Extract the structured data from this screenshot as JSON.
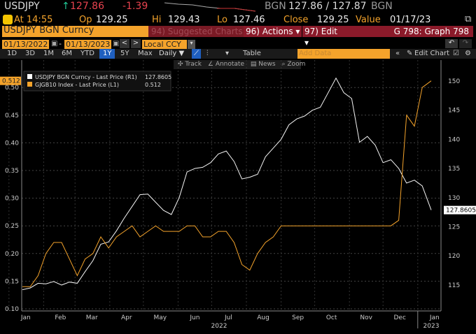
{
  "quote": {
    "ticker": "USDJPY",
    "arrow": "↑",
    "last": "127.86",
    "change": "-1.39",
    "source": "BGN",
    "bidask": "127.86 / 127.87",
    "source2": "BGN"
  },
  "stats": {
    "at": "At 14:55",
    "op_label": "Op",
    "op": "129.25",
    "hi_label": "Hi",
    "hi": "129.43",
    "lo_label": "Lo",
    "lo": "127.46",
    "close_label": "Close",
    "close": "129.25",
    "value_label": "Value",
    "value": "01/17/23"
  },
  "toolbar": {
    "security": "USDJPY BGN Curncy",
    "suggested": "94) Suggested Charts",
    "actions": "96) Actions ▾",
    "edit": "97) Edit ▾",
    "graph": "G 798: Graph 798"
  },
  "dates": {
    "start": "01/13/2022",
    "end": "01/13/2023",
    "currency": "Local CCY"
  },
  "periods": [
    "1D",
    "3D",
    "1M",
    "6M",
    "YTD",
    "1Y",
    "5Y",
    "Max"
  ],
  "active_period": "1Y",
  "frequency": "Daily ▼",
  "table_label": "Table",
  "add_data_placeholder": "Add Data",
  "edit_chart": "Edit Chart",
  "chart_tools": {
    "track": "Track",
    "annotate": "Annotate",
    "news": "News",
    "zoom": "Zoom"
  },
  "chart_data": {
    "type": "line",
    "legend": [
      {
        "name": "USDJPY BGN Curncy - Last Price (R1)",
        "value": "127.8605",
        "color": "#ffffff"
      },
      {
        "name": "GJGB10 Index - Last Price (L1)",
        "value": "0.512",
        "color": "#f4a32b"
      }
    ],
    "left_ticks": [
      "0.10",
      "0.15",
      "0.20",
      "0.25",
      "0.30",
      "0.35",
      "0.40",
      "0.45",
      "0.50"
    ],
    "right_ticks": [
      "115",
      "120",
      "125",
      "130",
      "135",
      "140",
      "145",
      "150"
    ],
    "left_tag": "0.512",
    "right_tag": "127.8605",
    "ylim_left": [
      0.1,
      0.55
    ],
    "ylim_right": [
      110,
      152
    ],
    "x_months": [
      "Jan",
      "Feb",
      "Mar",
      "Apr",
      "May",
      "Jun",
      "Jul",
      "Aug",
      "Sep",
      "Oct",
      "Nov",
      "Dec",
      "Jan"
    ],
    "x_years": [
      "2022",
      "2023"
    ],
    "days": [
      12,
      19,
      26,
      33,
      40,
      47,
      54,
      61,
      68,
      75,
      82,
      89,
      96,
      103,
      110,
      117,
      124,
      131,
      138,
      145,
      152,
      159,
      166,
      173,
      180,
      187,
      194,
      201,
      208,
      215,
      222,
      229,
      236,
      243,
      250,
      257,
      264,
      271,
      278,
      285,
      292,
      299,
      306,
      313,
      320,
      327,
      334,
      341,
      348,
      355,
      362,
      369,
      377
    ],
    "series": [
      {
        "name": "USDJPY",
        "axis": "right",
        "values": [
          114.2,
          114.5,
          115.3,
          115.2,
          115.6,
          115.0,
          115.5,
          115.3,
          117.3,
          119.2,
          122.0,
          122.4,
          124.3,
          126.5,
          128.5,
          130.5,
          130.6,
          129.2,
          127.8,
          127.1,
          130.0,
          134.4,
          135.0,
          135.2,
          136.0,
          137.5,
          138.0,
          136.2,
          133.2,
          133.5,
          134.0,
          137.0,
          138.5,
          140.0,
          142.5,
          143.5,
          144.0,
          145.0,
          145.5,
          148.0,
          150.5,
          148.0,
          147.0,
          139.5,
          140.5,
          139.0,
          136.0,
          136.5,
          135.0,
          132.5,
          133.0,
          132.0,
          127.86
        ]
      },
      {
        "name": "GJGB10",
        "axis": "left",
        "values": [
          0.14,
          0.14,
          0.16,
          0.2,
          0.22,
          0.22,
          0.19,
          0.16,
          0.19,
          0.2,
          0.23,
          0.21,
          0.23,
          0.24,
          0.25,
          0.23,
          0.24,
          0.25,
          0.24,
          0.24,
          0.24,
          0.25,
          0.25,
          0.23,
          0.23,
          0.24,
          0.24,
          0.22,
          0.18,
          0.17,
          0.2,
          0.22,
          0.23,
          0.25,
          0.25,
          0.25,
          0.25,
          0.25,
          0.25,
          0.25,
          0.25,
          0.25,
          0.25,
          0.25,
          0.25,
          0.25,
          0.25,
          0.25,
          0.26,
          0.45,
          0.43,
          0.5,
          0.512
        ]
      }
    ]
  }
}
